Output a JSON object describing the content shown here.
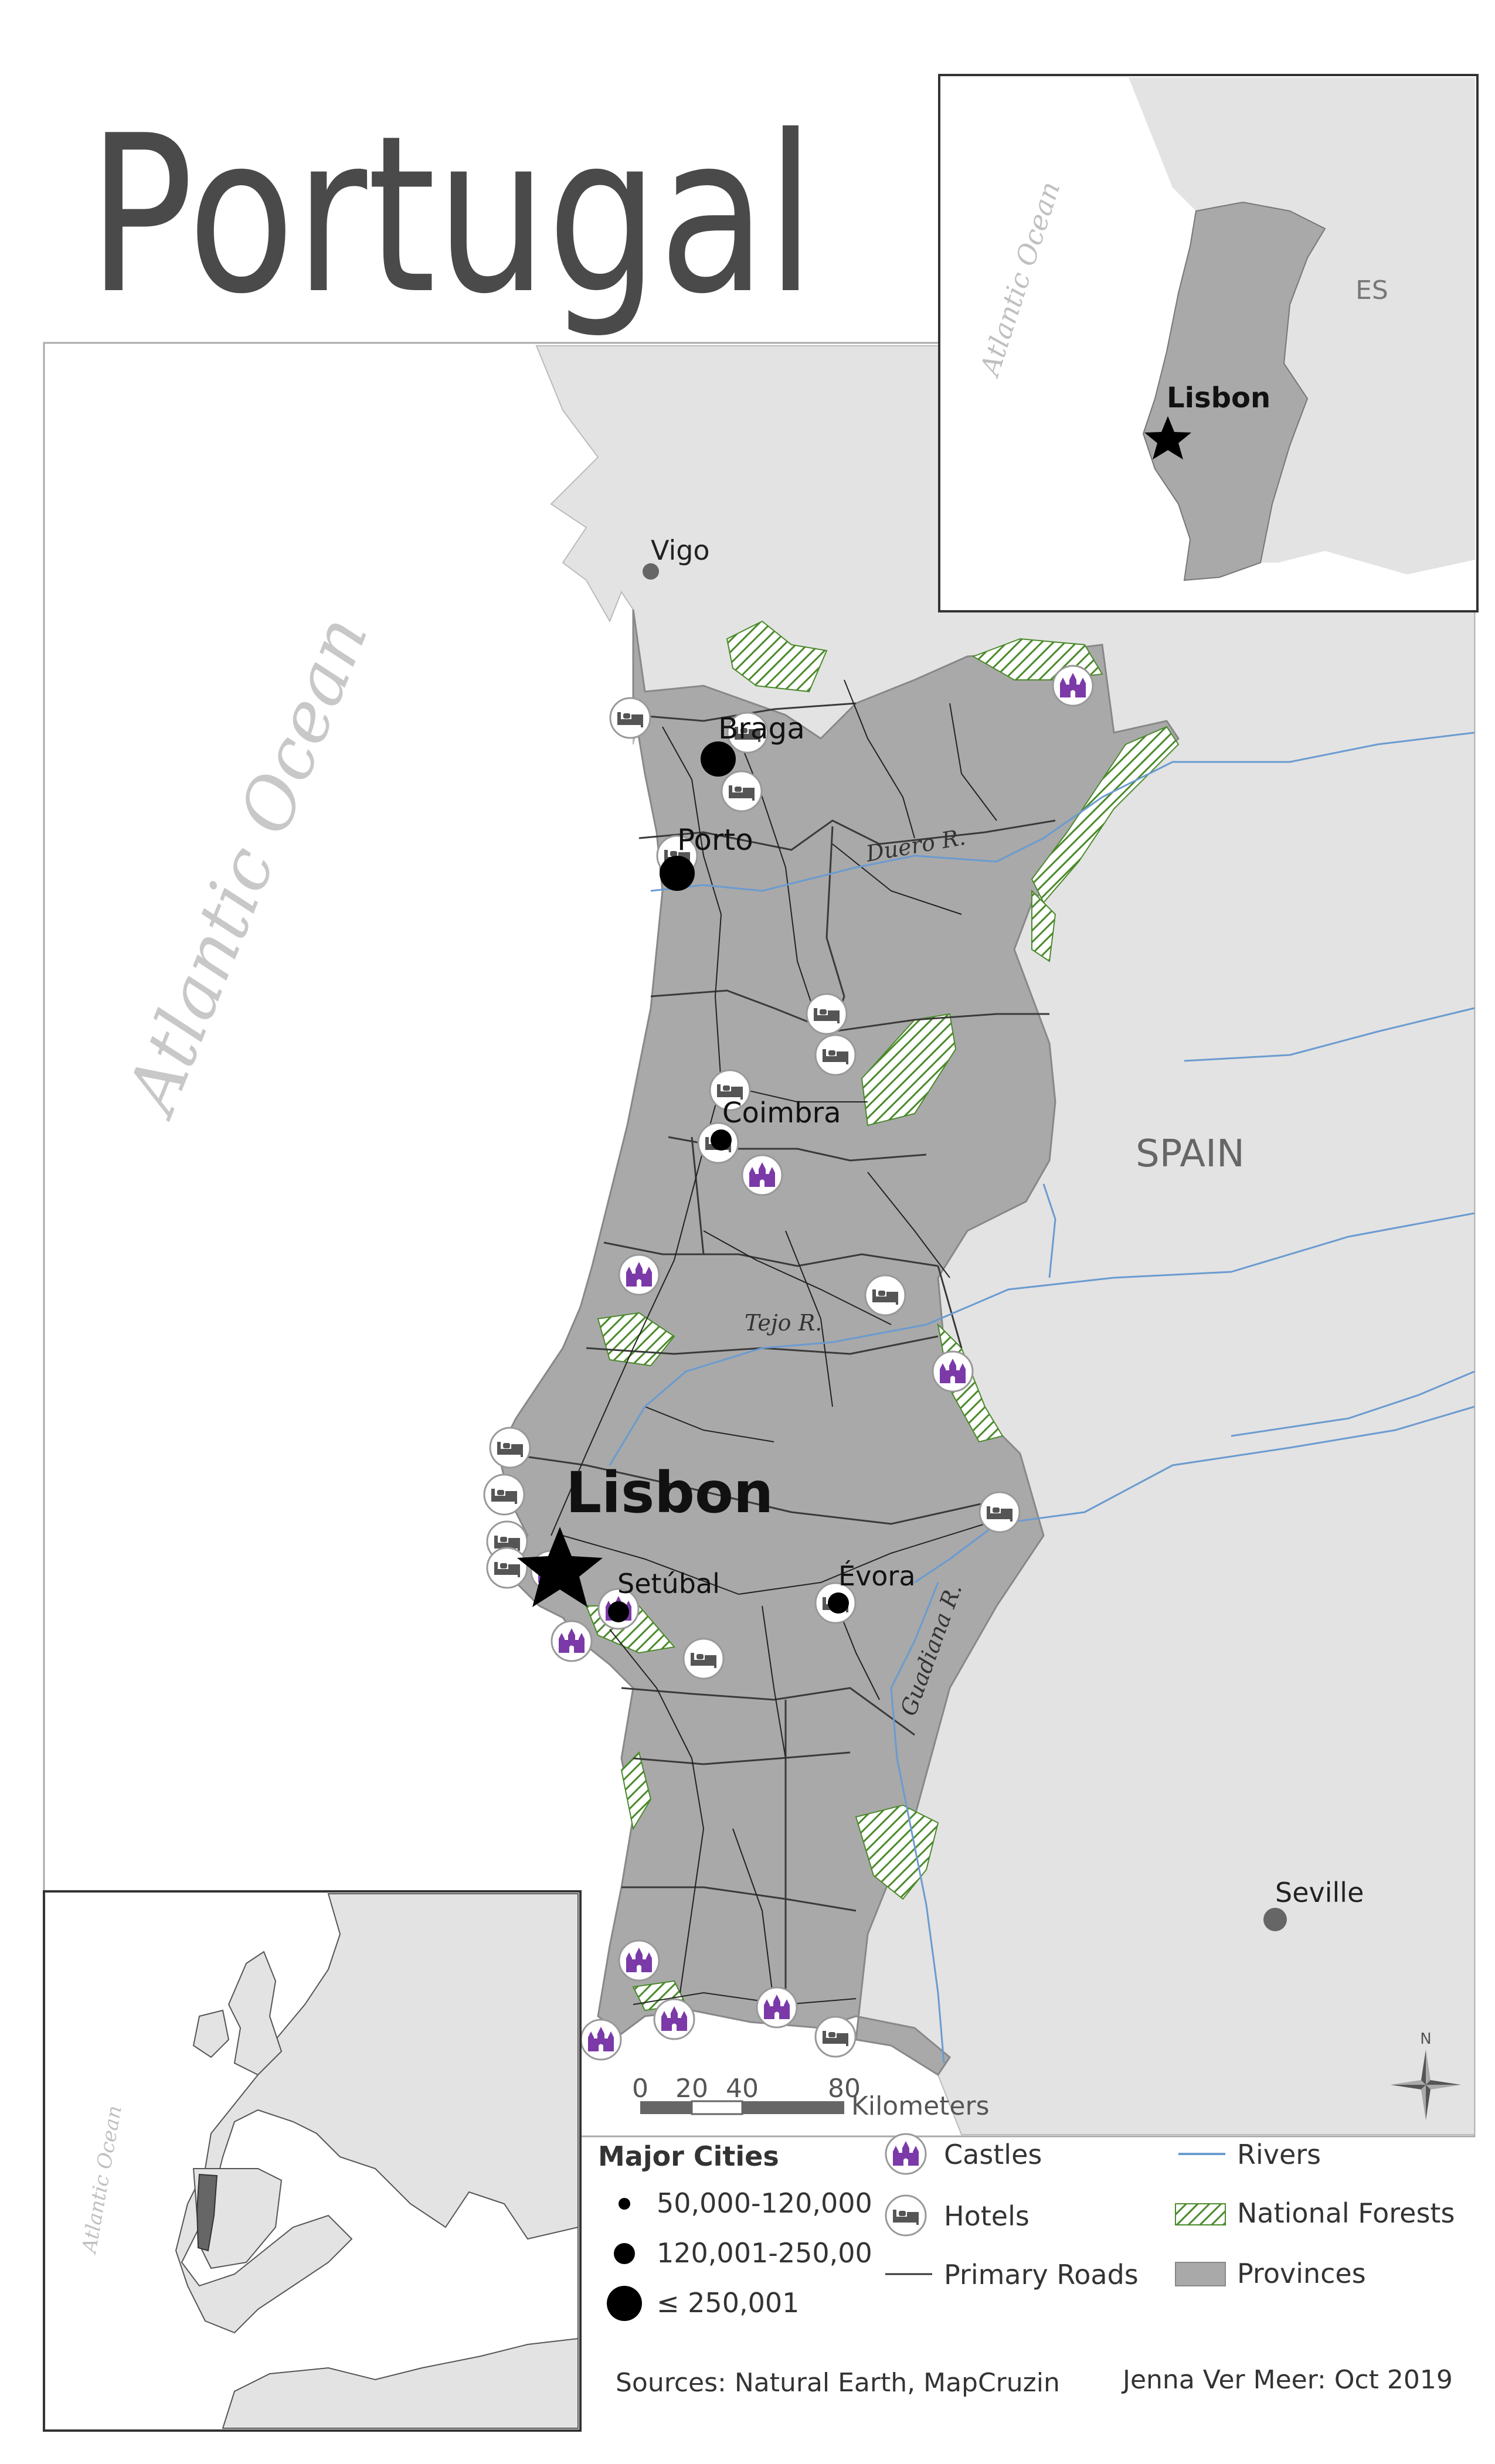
{
  "title": "Portugal",
  "colors": {
    "land_foreign": "#e3e3e3",
    "provinces": "#a9a9a9",
    "ocean": "#ffffff",
    "rivers": "#6a9bd0",
    "forest_hatch": "#4a8a2a",
    "castle": "#7b3aa8",
    "roads": "#333333",
    "city_dot": "#000000"
  },
  "labels": {
    "ocean": "Atlantic Ocean",
    "spain": "SPAIN",
    "duero": "Duero R.",
    "tejo": "Tejo R.",
    "guadiana": "Guadiana R.",
    "capital": "Lisbon"
  },
  "cities": [
    {
      "name": "Vigo",
      "size": "small-foreign"
    },
    {
      "name": "Braga",
      "size": "large"
    },
    {
      "name": "Porto",
      "size": "large"
    },
    {
      "name": "Coimbra",
      "size": "medium"
    },
    {
      "name": "Setúbal",
      "size": "medium"
    },
    {
      "name": "Évora",
      "size": "medium"
    },
    {
      "name": "Seville",
      "size": "small-foreign"
    }
  ],
  "scale_bar": {
    "ticks": [
      "0",
      "20",
      "40",
      "80"
    ],
    "unit": "Kilometers"
  },
  "north_arrow": {
    "label": "N"
  },
  "inset_portugal": {
    "ocean_label": "Atlantic Ocean",
    "country_label": "ES",
    "capital_label": "Lisbon"
  },
  "inset_europe": {
    "ocean_label": "Atlantic Ocean"
  },
  "legend": {
    "cities_title": "Major Cities",
    "city_classes": [
      "50,000-120,000",
      "120,001-250,00",
      "≤ 250,001"
    ],
    "castles": "Castles",
    "hotels": "Hotels",
    "roads": "Primary Roads",
    "rivers": "Rivers",
    "forests": "National Forests",
    "provinces": "Provinces"
  },
  "credits": {
    "sources": "Sources: Natural Earth, MapCruzin",
    "author": "Jenna Ver Meer: Oct 2019"
  }
}
